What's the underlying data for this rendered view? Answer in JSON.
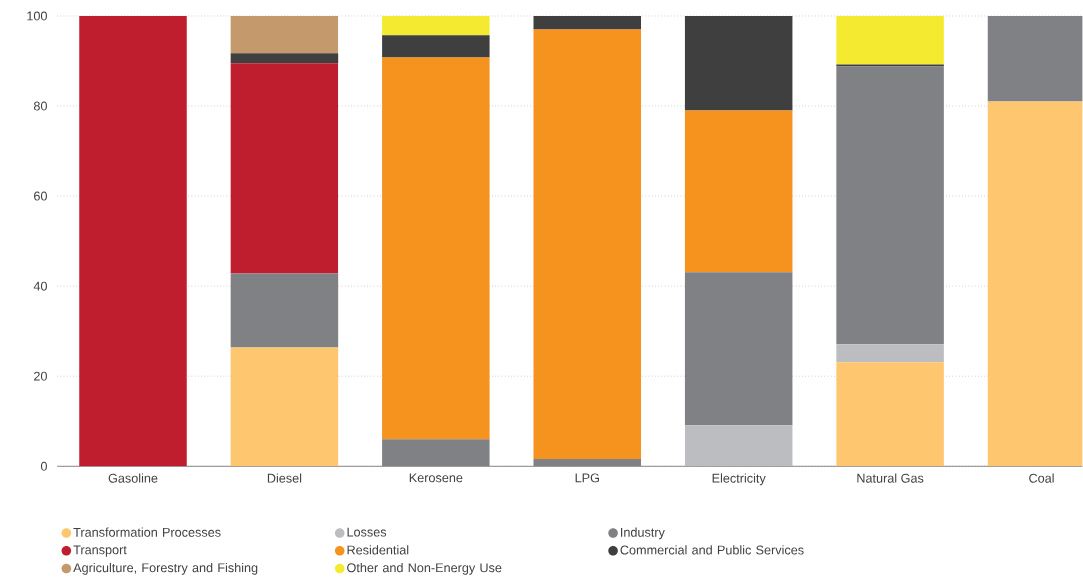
{
  "chart_data": {
    "type": "bar",
    "stacked": true,
    "categories": [
      "Gasoline",
      "Diesel",
      "Kerosene",
      "LPG",
      "Electricity",
      "Natural Gas",
      "Coal"
    ],
    "series": [
      {
        "name": "Transformation Processes",
        "color": "#fec76f",
        "values": [
          0,
          26.4,
          0,
          0,
          0,
          23.1,
          81.0
        ]
      },
      {
        "name": "Losses",
        "color": "#bcbdc0",
        "values": [
          0,
          0,
          0,
          0,
          9.1,
          4.0,
          0
        ]
      },
      {
        "name": "Industry",
        "color": "#808184",
        "values": [
          0,
          16.4,
          6.0,
          1.6,
          34.0,
          61.7,
          19.0
        ]
      },
      {
        "name": "Transport",
        "color": "#be1e2d",
        "values": [
          100,
          46.7,
          0,
          0,
          0,
          0,
          0
        ]
      },
      {
        "name": "Residential",
        "color": "#f6921e",
        "values": [
          0,
          0,
          84.8,
          95.4,
          35.9,
          0,
          0
        ]
      },
      {
        "name": "Commercial and Public Services",
        "color": "#3f3f40",
        "values": [
          0,
          2.2,
          4.9,
          3.0,
          21.0,
          0.4,
          0
        ]
      },
      {
        "name": "Agriculture, Forestry and Fishing",
        "color": "#c49a6c",
        "values": [
          0,
          8.3,
          0,
          0,
          0,
          0,
          0
        ]
      },
      {
        "name": "Other and Non-Energy Use",
        "color": "#f4eb30",
        "values": [
          0,
          0,
          4.3,
          0,
          0,
          10.8,
          0
        ]
      }
    ],
    "ylim": [
      0,
      100
    ],
    "yticks": [
      0,
      20,
      40,
      60,
      80,
      100
    ],
    "grid": "y",
    "legend": "bottom"
  }
}
